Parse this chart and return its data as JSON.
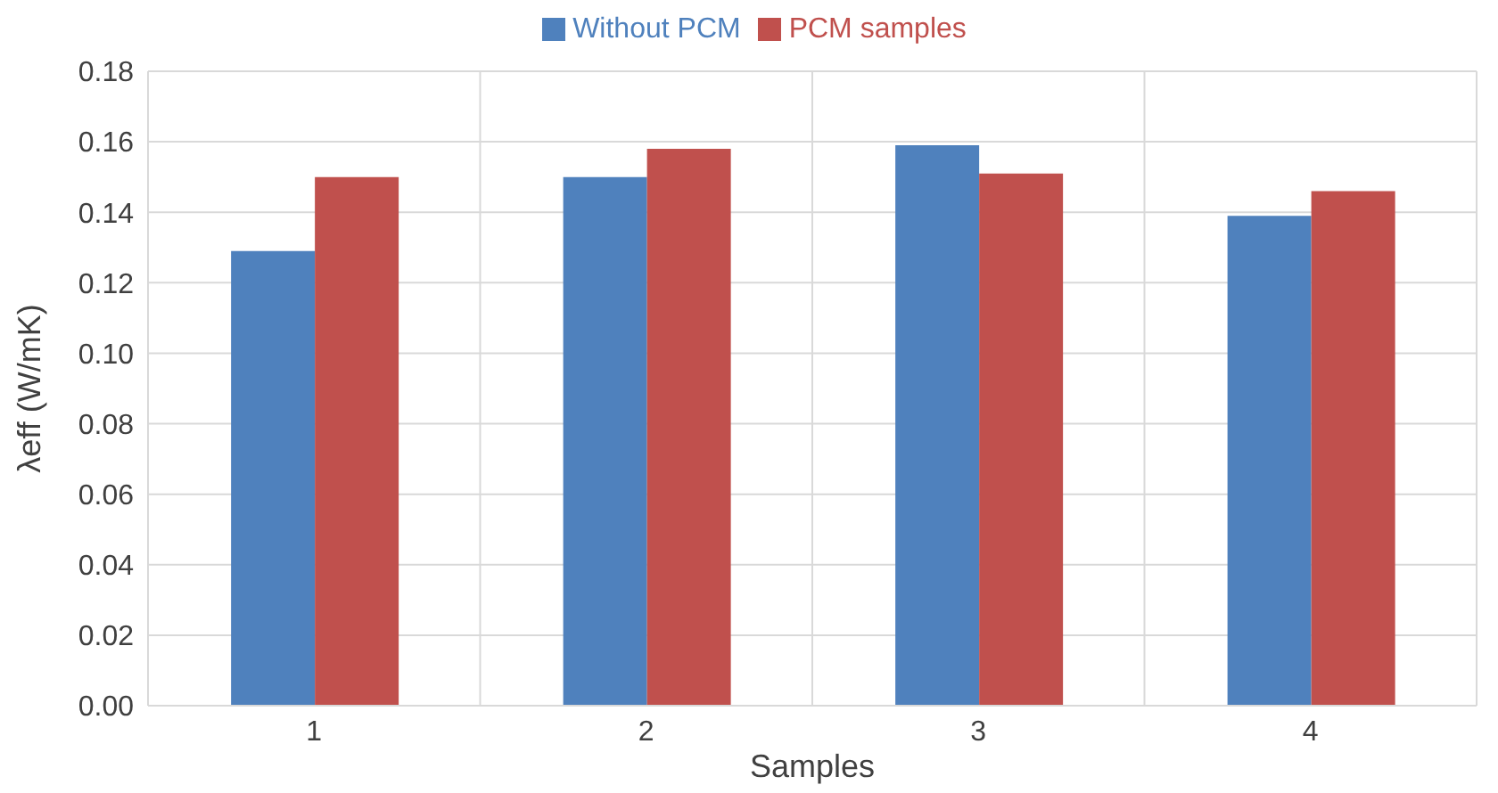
{
  "chart_data": {
    "type": "bar",
    "xlabel": "Samples",
    "ylabel": "λeff  (W/mK)",
    "categories": [
      "1",
      "2",
      "3",
      "4"
    ],
    "series": [
      {
        "name": "Without PCM",
        "color": "#4f81bd",
        "values": [
          0.129,
          0.15,
          0.159,
          0.139
        ]
      },
      {
        "name": "PCM samples",
        "color": "#c0504d",
        "values": [
          0.15,
          0.158,
          0.151,
          0.146
        ]
      }
    ],
    "ylim": [
      0,
      0.18
    ],
    "yticks": [
      {
        "value": 0,
        "label": "0.00"
      },
      0.02,
      0.04,
      0.06,
      0.08,
      {
        "value": 0.1,
        "label": "0.10"
      },
      0.12,
      0.14,
      0.16,
      0.18
    ],
    "grid": true,
    "legend": "top"
  }
}
